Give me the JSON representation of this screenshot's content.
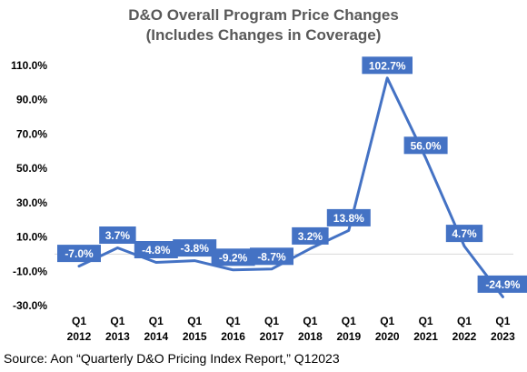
{
  "chart_data": {
    "type": "line",
    "title": "D&O Overall Program Price Changes",
    "subtitle": "(Includes Changes in Coverage)",
    "categories": [
      {
        "quarter": "Q1",
        "year": "2012"
      },
      {
        "quarter": "Q1",
        "year": "2013"
      },
      {
        "quarter": "Q1",
        "year": "2014"
      },
      {
        "quarter": "Q1",
        "year": "2015"
      },
      {
        "quarter": "Q1",
        "year": "2016"
      },
      {
        "quarter": "Q1",
        "year": "2017"
      },
      {
        "quarter": "Q1",
        "year": "2018"
      },
      {
        "quarter": "Q1",
        "year": "2019"
      },
      {
        "quarter": "Q1",
        "year": "2020"
      },
      {
        "quarter": "Q1",
        "year": "2021"
      },
      {
        "quarter": "Q1",
        "year": "2022"
      },
      {
        "quarter": "Q1",
        "year": "2023"
      }
    ],
    "series": [
      {
        "values": [
          -7.0,
          3.7,
          -4.8,
          -3.8,
          -9.2,
          -8.7,
          3.2,
          13.8,
          102.7,
          56.0,
          4.7,
          -24.9
        ],
        "data_labels": [
          "-7.0%",
          "3.7%",
          "-4.8%",
          "-3.8%",
          "-9.2%",
          "-8.7%",
          "3.2%",
          "13.8%",
          "102.7%",
          "56.0%",
          "4.7%",
          "-24.9%"
        ]
      }
    ],
    "y_ticks": [
      110,
      90,
      70,
      50,
      30,
      10,
      -10,
      -30
    ],
    "y_tick_labels": [
      "110.0%",
      "90.0%",
      "70.0%",
      "50.0%",
      "30.0%",
      "10.0%",
      "-10.0%",
      "-30.0%"
    ],
    "ylim": [
      -30,
      110
    ],
    "grid": false,
    "legend": "none",
    "colors": {
      "line": "#4472C4",
      "label_box": "#4472C4",
      "label_text": "#ffffff",
      "title_text": "#595959",
      "axis_text": "#000000",
      "zero_line": "#D9D9D9"
    }
  },
  "source": "Source: Aon “Quarterly D&O Pricing Index Report,” Q12023"
}
